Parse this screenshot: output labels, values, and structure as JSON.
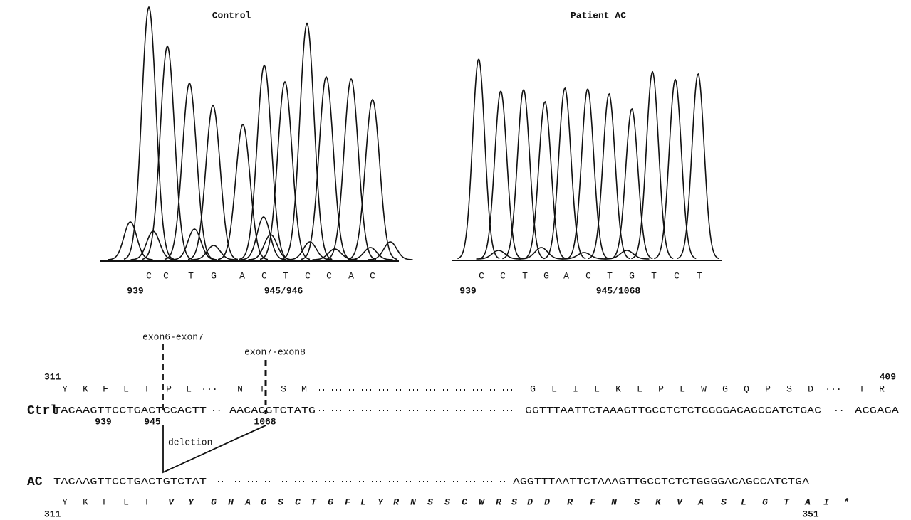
{
  "panels": [
    {
      "title": "Control",
      "bases": [
        "C",
        "C",
        "T",
        "G",
        "A",
        "C",
        "T",
        "C",
        "C",
        "A",
        "C"
      ],
      "pos_start": "939",
      "pos_end": "945/946"
    },
    {
      "title": "Patient AC",
      "bases": [
        "C",
        "C",
        "T",
        "G",
        "A",
        "C",
        "T",
        "G",
        "T",
        "C",
        "T"
      ],
      "pos_start": "939",
      "pos_end": "945/1068"
    }
  ],
  "junctions": [
    "exon6-exon7",
    "exon7-exon8"
  ],
  "ctrl": {
    "label": "Ctrl",
    "aa_start": "311",
    "aa_end": "409",
    "aa": [
      "Y",
      "K",
      "F",
      "L",
      "T",
      "P",
      "L",
      "···",
      "N",
      "T",
      "S",
      "M",
      "G",
      "L",
      "I",
      "L",
      "K",
      "L",
      "P",
      "L",
      "W",
      "G",
      "Q",
      "P",
      "S",
      "D",
      "···",
      "T",
      "R"
    ],
    "seq": [
      "TACAAGTTCCTGACTCCACTT",
      "··",
      "AACACGTCTATG",
      "GGTTTAATTCTAAAGTTGCCTCTCTGGGGACAGCCATCTGAC",
      "··",
      "ACGAGA"
    ],
    "positions": [
      "939",
      "945",
      "1068"
    ]
  },
  "deletion": "deletion",
  "ac": {
    "label": "AC",
    "seq": [
      "TACAAGTTCCTGACTGTCTAT",
      "AGGTTTAATTCTAAAGTTGCCTCTCTGGGGACAGCCATCTGA"
    ],
    "aa": [
      "Y",
      "K",
      "F",
      "L",
      "T"
    ],
    "aa_new": [
      "V",
      "Y",
      "G",
      "H",
      "A",
      "G",
      "S",
      "C",
      "T",
      "G",
      "F",
      "L",
      "Y",
      "R",
      "N",
      "S",
      "S",
      "C",
      "W",
      "R",
      "S",
      "D",
      "D",
      "R",
      "F",
      "N",
      "S",
      "K",
      "V",
      "A",
      "S",
      "L",
      "G",
      "T",
      "A",
      "I",
      "*"
    ],
    "aa_start": "311",
    "aa_end": "351"
  }
}
